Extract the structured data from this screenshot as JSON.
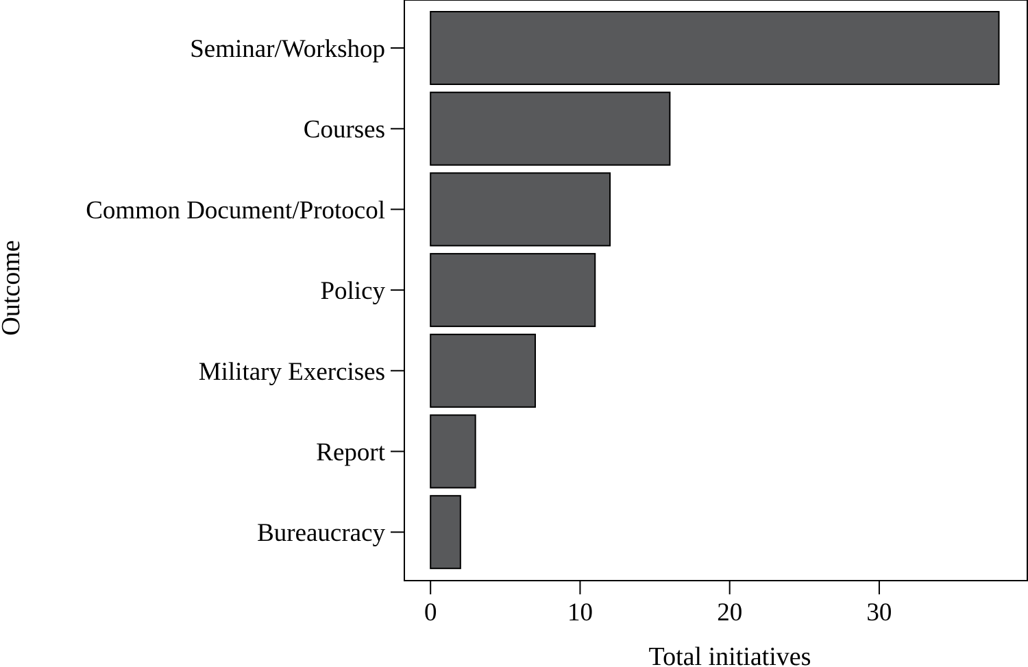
{
  "chart_data": {
    "type": "bar",
    "orientation": "horizontal",
    "categories": [
      "Seminar/Workshop",
      "Courses",
      "Common Document/Protocol",
      "Policy",
      "Military Exercises",
      "Report",
      "Bureaucracy"
    ],
    "values": [
      38,
      16,
      12,
      11,
      7,
      3,
      2
    ],
    "xlabel": "Total initiatives",
    "ylabel": "Outcome",
    "x_ticks": [
      0,
      10,
      20,
      30
    ],
    "xlim": [
      -1.75,
      39.9
    ],
    "grid": false,
    "bar_color": "#58595b",
    "edge_color": "#000000"
  }
}
